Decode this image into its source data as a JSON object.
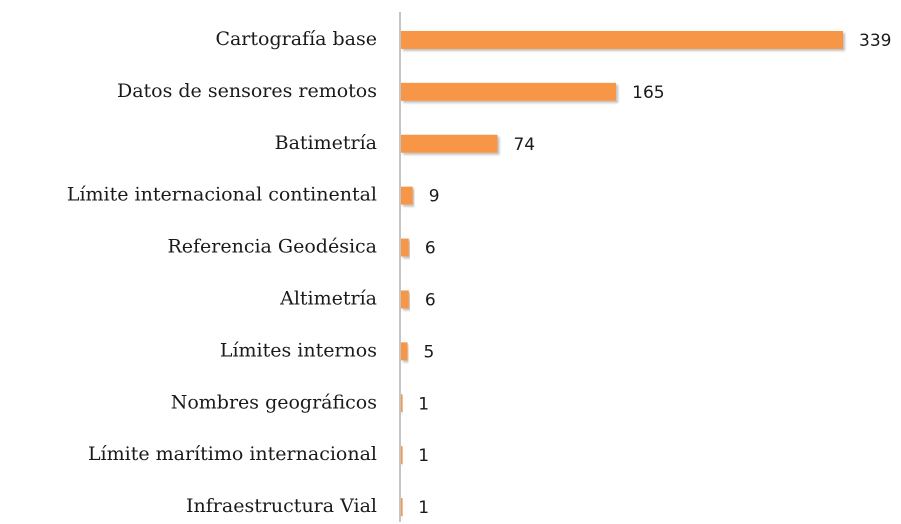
{
  "chart_data": {
    "type": "hbar",
    "categories": [
      "Cartografía base",
      "Datos de sensores remotos",
      "Batimetría",
      "Límite internacional continental",
      "Referencia Geodésica",
      "Altimetría",
      "Límites internos",
      "Nombres geográficos",
      "Límite marítimo internacional",
      "Infraestructura Vial"
    ],
    "values": [
      339,
      165,
      74,
      9,
      6,
      6,
      5,
      1,
      1,
      1
    ],
    "color": "#f79646",
    "xlim": [
      0,
      339
    ]
  }
}
